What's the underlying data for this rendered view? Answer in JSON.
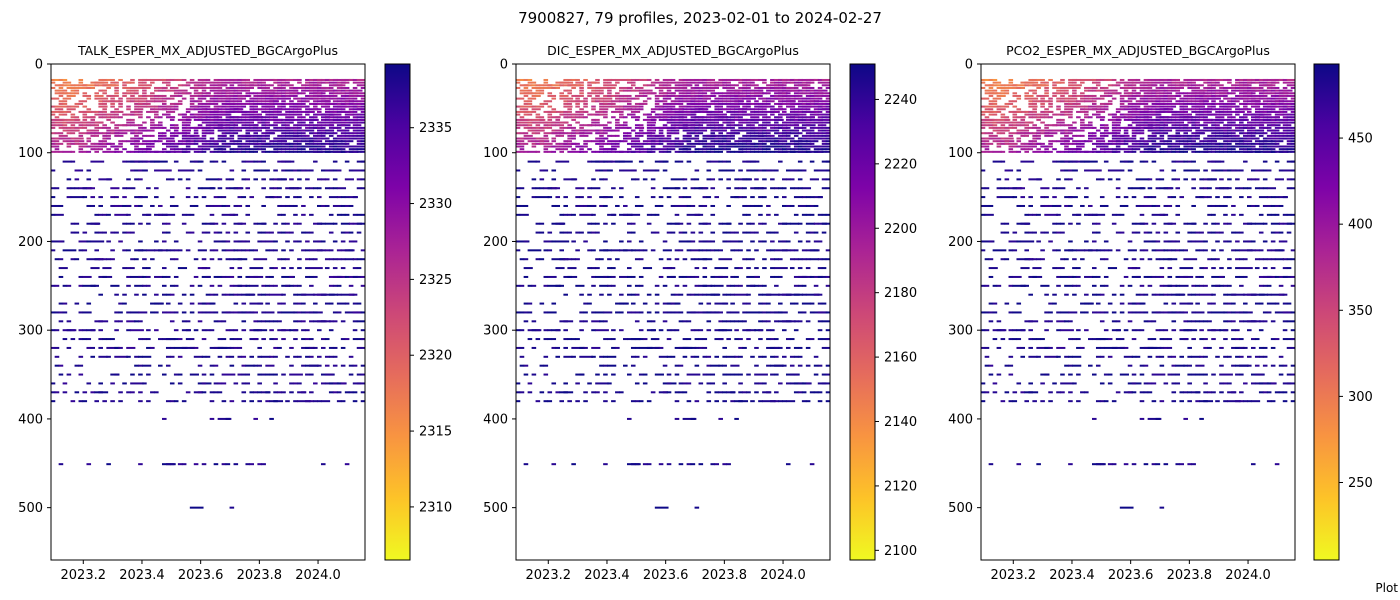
{
  "suptitle": "7900827, 79 profiles, 2023-02-01 to 2024-02-27",
  "footer_note": "Plot",
  "colormap": [
    "#f0f921",
    "#fdc328",
    "#f89441",
    "#e56b5d",
    "#cc4778",
    "#aa2395",
    "#7e03a8",
    "#4c02a1",
    "#0d0887"
  ],
  "chart_data": [
    {
      "type": "heatmap",
      "title": "TALK_ESPER_MX_ADJUSTED_BGCArgoPlus",
      "xlabel": "",
      "ylabel": "",
      "xlim": [
        2023.09,
        2024.16
      ],
      "ylim": [
        559,
        0
      ],
      "xticks": [
        2023.2,
        2023.4,
        2023.6,
        2023.8,
        2024.0
      ],
      "xtick_labels": [
        "2023.2",
        "2023.4",
        "2023.6",
        "2023.8",
        "2024.0"
      ],
      "yticks": [
        0,
        100,
        200,
        300,
        400,
        500
      ],
      "ytick_labels": [
        "0",
        "100",
        "200",
        "300",
        "400",
        "500"
      ],
      "colorbar": {
        "range": [
          2306.5,
          2339.2
        ],
        "ticks": [
          2310,
          2315,
          2320,
          2325,
          2330,
          2335
        ],
        "tick_labels": [
          "2310",
          "2315",
          "2320",
          "2325",
          "2330",
          "2335"
        ]
      },
      "surface_value": 2313,
      "deep_value": 2338
    },
    {
      "type": "heatmap",
      "title": "DIC_ESPER_MX_ADJUSTED_BGCArgoPlus",
      "xlabel": "",
      "ylabel": "",
      "xlim": [
        2023.09,
        2024.16
      ],
      "ylim": [
        559,
        0
      ],
      "xticks": [
        2023.2,
        2023.4,
        2023.6,
        2023.8,
        2024.0
      ],
      "xtick_labels": [
        "2023.2",
        "2023.4",
        "2023.6",
        "2023.8",
        "2024.0"
      ],
      "yticks": [
        0,
        100,
        200,
        300,
        400,
        500
      ],
      "ytick_labels": [
        "0",
        "100",
        "200",
        "300",
        "400",
        "500"
      ],
      "colorbar": {
        "range": [
          2097,
          2251
        ],
        "ticks": [
          2100,
          2120,
          2140,
          2160,
          2180,
          2200,
          2220,
          2240
        ],
        "tick_labels": [
          "2100",
          "2120",
          "2140",
          "2160",
          "2180",
          "2200",
          "2220",
          "2240"
        ]
      },
      "surface_value": 2130,
      "deep_value": 2248
    },
    {
      "type": "heatmap",
      "title": "PCO2_ESPER_MX_ADJUSTED_BGCArgoPlus",
      "xlabel": "",
      "ylabel": "",
      "xlim": [
        2023.09,
        2024.16
      ],
      "ylim": [
        559,
        0
      ],
      "xticks": [
        2023.2,
        2023.4,
        2023.6,
        2023.8,
        2024.0
      ],
      "xtick_labels": [
        "2023.2",
        "2023.4",
        "2023.6",
        "2023.8",
        "2024.0"
      ],
      "yticks": [
        0,
        100,
        200,
        300,
        400,
        500
      ],
      "ytick_labels": [
        "0",
        "100",
        "200",
        "300",
        "400",
        "500"
      ],
      "colorbar": {
        "range": [
          205,
          493
        ],
        "ticks": [
          250,
          300,
          350,
          400,
          450
        ],
        "tick_labels": [
          "250",
          "300",
          "350",
          "400",
          "450"
        ]
      },
      "surface_value": 260,
      "deep_value": 485
    }
  ]
}
